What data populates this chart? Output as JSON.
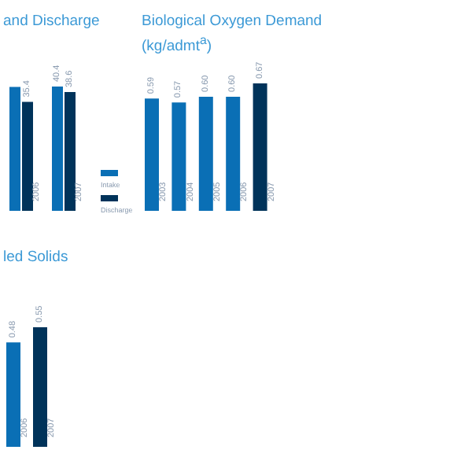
{
  "chart_data": [
    {
      "type": "bar",
      "title": "and Discharge",
      "categories": [
        "2006",
        "2007"
      ],
      "legend": "right",
      "series": [
        {
          "name": "Intake",
          "color": "#0a6fb5",
          "values": [
            40.3,
            40.4
          ],
          "value_labels": [
            null,
            "40.4"
          ]
        },
        {
          "name": "Discharge",
          "color": "#00335a",
          "values": [
            35.4,
            38.6
          ],
          "value_labels": [
            "35.4",
            "38.6"
          ]
        }
      ]
    },
    {
      "type": "bar",
      "title": "Biological Oxygen Demand",
      "subtitle": "(kg/admt$^{a}$)",
      "categories": [
        "2003",
        "2004",
        "2005",
        "2006",
        "2007"
      ],
      "values": [
        0.59,
        0.57,
        0.6,
        0.6,
        0.67
      ],
      "value_labels": [
        "0.59",
        "0.57",
        "0.60",
        "0.60",
        "0.67"
      ],
      "colors": [
        "#0a6fb5",
        "#0a6fb5",
        "#0a6fb5",
        "#0a6fb5",
        "#00335a"
      ]
    },
    {
      "type": "bar",
      "title": "led Solids",
      "categories": [
        "2006",
        "2007"
      ],
      "values": [
        0.48,
        0.55
      ],
      "value_labels": [
        "0.48",
        "0.55"
      ],
      "colors": [
        "#0a6fb5",
        "#00335a"
      ]
    }
  ]
}
